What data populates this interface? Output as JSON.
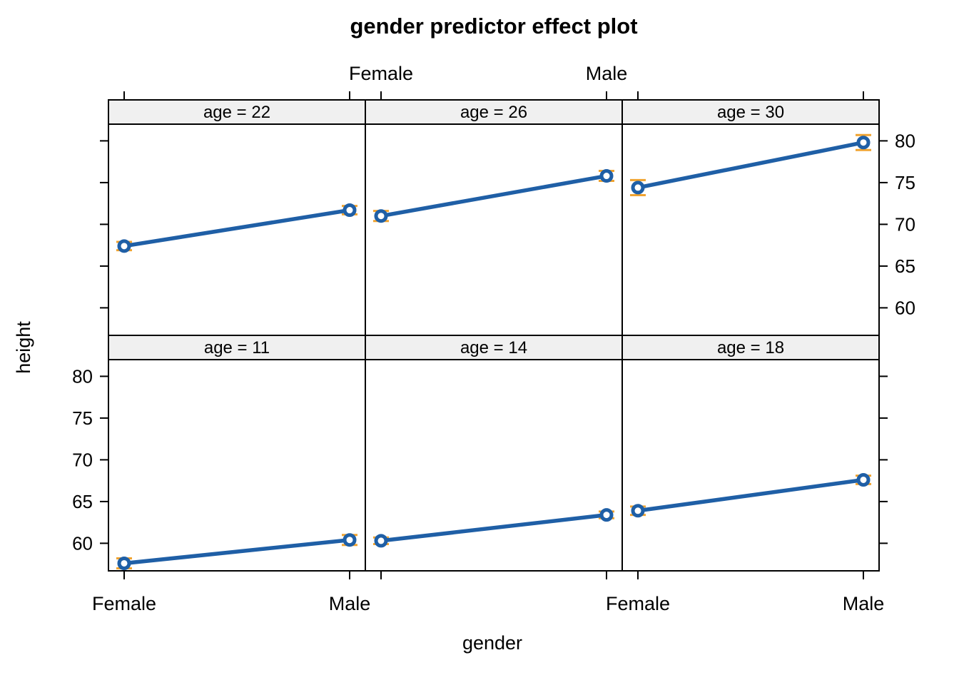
{
  "chart_data": {
    "type": "line",
    "title": "gender predictor effect plot",
    "xlabel": "gender",
    "ylabel": "height",
    "x_categories": [
      "Female",
      "Male"
    ],
    "ylim": [
      56.7,
      82.0
    ],
    "yticks": [
      60,
      65,
      70,
      75,
      80
    ],
    "legend": "none",
    "grid": false,
    "colors": {
      "line": "#1f5fa6",
      "error_bar": "#f0a330",
      "strip_fill": "#f0f0f0",
      "panel_border": "#000000"
    },
    "layout": {
      "ncols": 3,
      "nrows": 2,
      "top_labeled_cols": [
        1
      ],
      "bottom_labeled_cols": [
        0,
        2
      ],
      "y_labels_right_rows": [
        0
      ],
      "y_labels_left_rows": [
        1
      ]
    },
    "panels": [
      {
        "strip": "age = 22",
        "age": 22,
        "row": 0,
        "col": 0,
        "points": [
          {
            "x": "Female",
            "fit": 67.4,
            "lower": 66.9,
            "upper": 67.9
          },
          {
            "x": "Male",
            "fit": 71.7,
            "lower": 71.2,
            "upper": 72.2
          }
        ]
      },
      {
        "strip": "age = 26",
        "age": 26,
        "row": 0,
        "col": 1,
        "points": [
          {
            "x": "Female",
            "fit": 71.0,
            "lower": 70.4,
            "upper": 71.6
          },
          {
            "x": "Male",
            "fit": 75.8,
            "lower": 75.2,
            "upper": 76.4
          }
        ]
      },
      {
        "strip": "age = 30",
        "age": 30,
        "row": 0,
        "col": 2,
        "points": [
          {
            "x": "Female",
            "fit": 74.4,
            "lower": 73.5,
            "upper": 75.3
          },
          {
            "x": "Male",
            "fit": 79.8,
            "lower": 78.9,
            "upper": 80.7
          }
        ]
      },
      {
        "strip": "age = 11",
        "age": 11,
        "row": 1,
        "col": 0,
        "points": [
          {
            "x": "Female",
            "fit": 57.6,
            "lower": 57.0,
            "upper": 58.2
          },
          {
            "x": "Male",
            "fit": 60.4,
            "lower": 59.8,
            "upper": 61.0
          }
        ]
      },
      {
        "strip": "age = 14",
        "age": 14,
        "row": 1,
        "col": 1,
        "points": [
          {
            "x": "Female",
            "fit": 60.3,
            "lower": 59.9,
            "upper": 60.7
          },
          {
            "x": "Male",
            "fit": 63.4,
            "lower": 63.0,
            "upper": 63.8
          }
        ]
      },
      {
        "strip": "age = 18",
        "age": 18,
        "row": 1,
        "col": 2,
        "points": [
          {
            "x": "Female",
            "fit": 63.9,
            "lower": 63.4,
            "upper": 64.4
          },
          {
            "x": "Male",
            "fit": 67.6,
            "lower": 67.1,
            "upper": 68.1
          }
        ]
      }
    ]
  }
}
